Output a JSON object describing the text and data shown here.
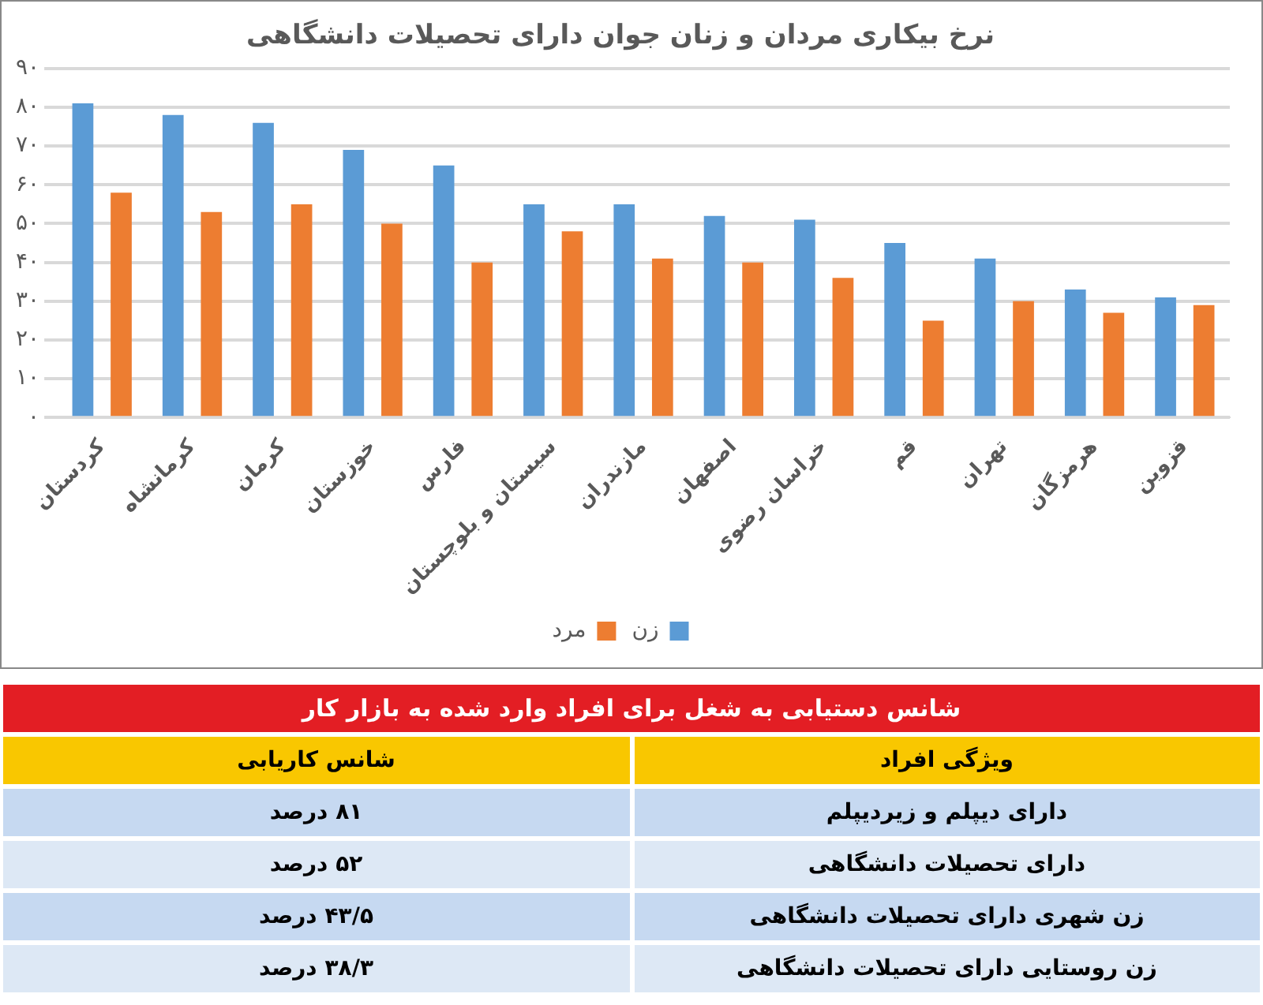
{
  "chart_data": [
    {
      "type": "bar",
      "title": "نرخ بیکاری مردان و زنان جوان دارای تحصیلات دانشگاهی",
      "categories": [
        "کردستان",
        "کرمانشاه",
        "کرمان",
        "خوزستان",
        "فارس",
        "سیستان و بلوچستان",
        "مازندران",
        "اصفهان",
        "خراسان رضوی",
        "قم",
        "تهران",
        "هرمزگان",
        "قزوین"
      ],
      "series": [
        {
          "name": "زن",
          "color": "#5b9bd5",
          "values": [
            81,
            78,
            76,
            69,
            65,
            55,
            55,
            52,
            51,
            45,
            41,
            33,
            31
          ]
        },
        {
          "name": "مرد",
          "color": "#ed7d31",
          "values": [
            58,
            53,
            55,
            50,
            40,
            48,
            41,
            40,
            36,
            25,
            30,
            27,
            29
          ]
        }
      ],
      "ylim": [
        0,
        90
      ],
      "yticks": [
        {
          "value": 0,
          "label": "۰"
        },
        {
          "value": 10,
          "label": "۱۰"
        },
        {
          "value": 20,
          "label": "۲۰"
        },
        {
          "value": 30,
          "label": "۳۰"
        },
        {
          "value": 40,
          "label": "۴۰"
        },
        {
          "value": 50,
          "label": "۵۰"
        },
        {
          "value": 60,
          "label": "۶۰"
        },
        {
          "value": 70,
          "label": "۷۰"
        },
        {
          "value": 80,
          "label": "۸۰"
        },
        {
          "value": 90,
          "label": "۹۰"
        }
      ],
      "grid": "y",
      "legend": "bottom"
    },
    {
      "type": "other",
      "title": "شانس دستیابی به شغل برای افراد وارد شده به بازار کار",
      "annotations": [
        "ویژگی افراد",
        "شانس کاریابی"
      ],
      "categories": [
        "دارای دیپلم و زیردیپلم",
        "دارای تحصیلات دانشگاهی",
        "زن شهری دارای تحصیلات دانشگاهی",
        "زن روستایی دارای تحصیلات دانشگاهی"
      ],
      "value_labels": [
        "۸۱ درصد",
        "۵۲ درصد",
        "۴۳/۵ درصد",
        "۳۸/۳ درصد"
      ]
    }
  ]
}
